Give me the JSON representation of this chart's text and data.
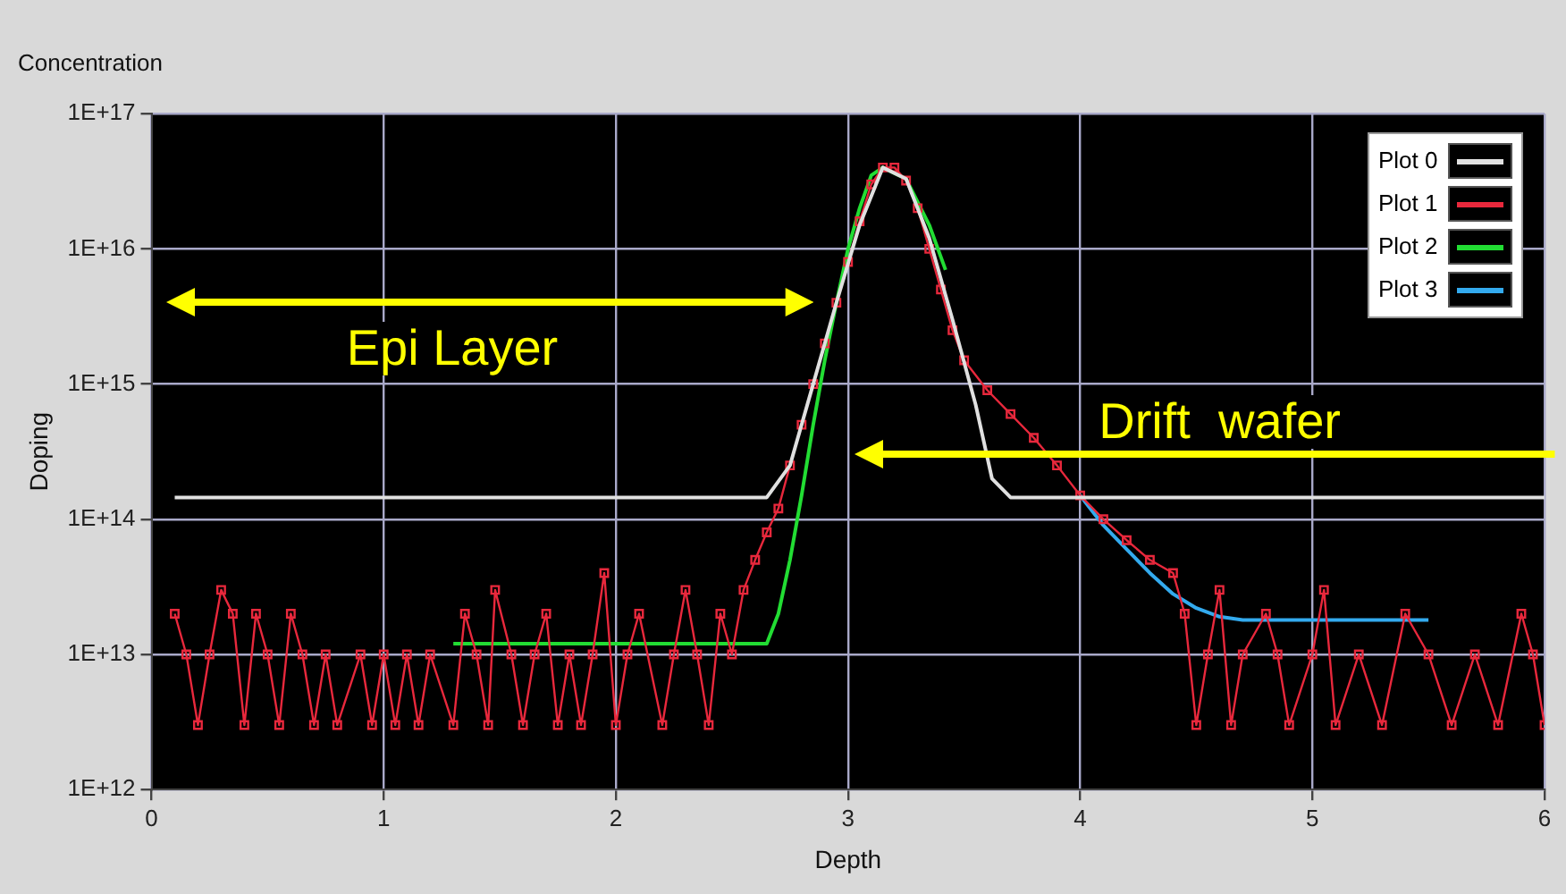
{
  "chart_data": {
    "type": "line",
    "title": "Concentration",
    "xlabel": "Depth",
    "ylabel": "Doping",
    "log": "y",
    "grid": true,
    "legend": "top right",
    "xlim": [
      0,
      6
    ],
    "xticks": [
      0,
      1,
      2,
      3,
      4,
      5,
      6
    ],
    "ylim": [
      1000000000000.0,
      1e+17
    ],
    "yticks": [
      {
        "value": 1000000000000.0,
        "label": "1E+12"
      },
      {
        "value": 10000000000000.0,
        "label": "1E+13"
      },
      {
        "value": 100000000000000.0,
        "label": "1E+14"
      },
      {
        "value": 1000000000000000.0,
        "label": "1E+15"
      },
      {
        "value": 1e+16,
        "label": "1E+16"
      },
      {
        "value": 1e+17,
        "label": "1E+17"
      }
    ],
    "annotations": [
      "Epi Layer",
      "Drift  wafer"
    ],
    "series": [
      {
        "name": "Plot 0",
        "color": "#e0e0e0",
        "marker": "none",
        "x": [
          0.1,
          2.65,
          2.75,
          2.85,
          2.95,
          3.05,
          3.15,
          3.25,
          3.35,
          3.45,
          3.55,
          3.62,
          3.7,
          6
        ],
        "values": [
          145000000000000.0,
          145000000000000.0,
          250000000000000.0,
          1000000000000000.0,
          4000000000000000.0,
          1.5e+16,
          4e+16,
          3.3e+16,
          1.2e+16,
          3000000000000000.0,
          700000000000000.0,
          200000000000000.0,
          145000000000000.0,
          145000000000000.0
        ]
      },
      {
        "name": "Plot 1",
        "color": "#e8283c",
        "marker": "square",
        "x": [
          0.1,
          0.15,
          0.2,
          0.25,
          0.3,
          0.35,
          0.4,
          0.45,
          0.5,
          0.55,
          0.6,
          0.65,
          0.7,
          0.75,
          0.8,
          0.9,
          0.95,
          1.0,
          1.05,
          1.1,
          1.15,
          1.2,
          1.3,
          1.35,
          1.4,
          1.45,
          1.48,
          1.55,
          1.6,
          1.65,
          1.7,
          1.75,
          1.8,
          1.85,
          1.9,
          1.95,
          2.0,
          2.05,
          2.1,
          2.2,
          2.25,
          2.3,
          2.35,
          2.4,
          2.45,
          2.5,
          2.55,
          2.6,
          2.65,
          2.7,
          2.75,
          2.8,
          2.85,
          2.9,
          2.95,
          3.0,
          3.05,
          3.1,
          3.15,
          3.2,
          3.25,
          3.3,
          3.35,
          3.4,
          3.45,
          3.5,
          3.6,
          3.7,
          3.8,
          3.9,
          4.0,
          4.1,
          4.2,
          4.3,
          4.4,
          4.45,
          4.5,
          4.55,
          4.6,
          4.65,
          4.7,
          4.8,
          4.85,
          4.9,
          5.0,
          5.05,
          5.1,
          5.2,
          5.3,
          5.4,
          5.5,
          5.6,
          5.7,
          5.8,
          5.9,
          5.95,
          6.0
        ],
        "values": [
          20000000000000.0,
          10000000000000.0,
          3000000000000.0,
          10000000000000.0,
          30000000000000.0,
          20000000000000.0,
          3000000000000.0,
          20000000000000.0,
          10000000000000.0,
          3000000000000.0,
          20000000000000.0,
          10000000000000.0,
          3000000000000.0,
          10000000000000.0,
          3000000000000.0,
          10000000000000.0,
          3000000000000.0,
          10000000000000.0,
          3000000000000.0,
          10000000000000.0,
          3000000000000.0,
          10000000000000.0,
          3000000000000.0,
          20000000000000.0,
          10000000000000.0,
          3000000000000.0,
          30000000000000.0,
          10000000000000.0,
          3000000000000.0,
          10000000000000.0,
          20000000000000.0,
          3000000000000.0,
          10000000000000.0,
          3000000000000.0,
          10000000000000.0,
          40000000000000.0,
          3000000000000.0,
          10000000000000.0,
          20000000000000.0,
          3000000000000.0,
          10000000000000.0,
          30000000000000.0,
          10000000000000.0,
          3000000000000.0,
          20000000000000.0,
          10000000000000.0,
          30000000000000.0,
          50000000000000.0,
          80000000000000.0,
          120000000000000.0,
          250000000000000.0,
          500000000000000.0,
          1000000000000000.0,
          2000000000000000.0,
          4000000000000000.0,
          8000000000000000.0,
          1.6e+16,
          3e+16,
          4e+16,
          4e+16,
          3.2e+16,
          2e+16,
          1e+16,
          5000000000000000.0,
          2500000000000000.0,
          1500000000000000.0,
          900000000000000.0,
          600000000000000.0,
          400000000000000.0,
          250000000000000.0,
          150000000000000.0,
          100000000000000.0,
          70000000000000.0,
          50000000000000.0,
          40000000000000.0,
          20000000000000.0,
          3000000000000.0,
          10000000000000.0,
          30000000000000.0,
          3000000000000.0,
          10000000000000.0,
          20000000000000.0,
          10000000000000.0,
          3000000000000.0,
          10000000000000.0,
          30000000000000.0,
          3000000000000.0,
          10000000000000.0,
          3000000000000.0,
          20000000000000.0,
          10000000000000.0,
          3000000000000.0,
          10000000000000.0,
          3000000000000.0,
          20000000000000.0,
          10000000000000.0,
          3000000000000.0
        ]
      },
      {
        "name": "Plot 2",
        "color": "#22dd33",
        "marker": "none",
        "x": [
          1.3,
          2.65,
          2.7,
          2.75,
          2.8,
          2.85,
          2.9,
          2.95,
          3.0,
          3.05,
          3.1,
          3.15,
          3.25,
          3.35,
          3.42
        ],
        "values": [
          12000000000000.0,
          12000000000000.0,
          20000000000000.0,
          50000000000000.0,
          150000000000000.0,
          500000000000000.0,
          1500000000000000.0,
          4000000000000000.0,
          1e+16,
          2e+16,
          3.5e+16,
          4e+16,
          3.3e+16,
          1.5e+16,
          7000000000000000.0
        ]
      },
      {
        "name": "Plot 3",
        "color": "#33aaee",
        "marker": "none",
        "x": [
          4.0,
          4.1,
          4.2,
          4.3,
          4.4,
          4.5,
          4.6,
          4.7,
          5.5
        ],
        "values": [
          150000000000000.0,
          90000000000000.0,
          60000000000000.0,
          40000000000000.0,
          28000000000000.0,
          22000000000000.0,
          19000000000000.0,
          18000000000000.0,
          18000000000000.0
        ]
      }
    ]
  }
}
